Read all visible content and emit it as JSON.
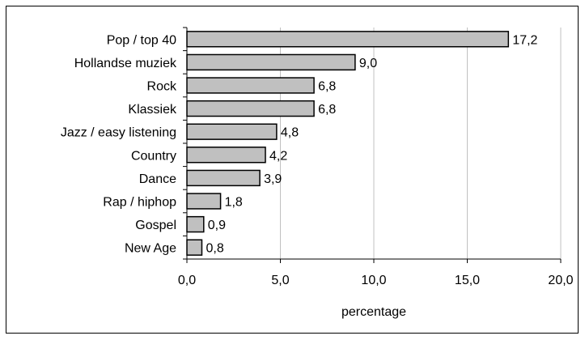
{
  "chart_data": {
    "type": "bar",
    "orientation": "horizontal",
    "categories": [
      "Pop / top 40",
      "Hollandse muziek",
      "Rock",
      "Klassiek",
      "Jazz / easy listening",
      "Country",
      "Dance",
      "Rap / hiphop",
      "Gospel",
      "New Age"
    ],
    "values": [
      17.2,
      9.0,
      6.8,
      6.8,
      4.8,
      4.2,
      3.9,
      1.8,
      0.9,
      0.8
    ],
    "value_labels": [
      "17,2",
      "9,0",
      "6,8",
      "6,8",
      "4,8",
      "4,2",
      "3,9",
      "1,8",
      "0,9",
      "0,8"
    ],
    "xlim": [
      0,
      20
    ],
    "x_ticks": [
      0,
      5,
      10,
      15,
      20
    ],
    "x_tick_labels": [
      "0,0",
      "5,0",
      "10,0",
      "15,0",
      "20,0"
    ],
    "xlabel": "percentage",
    "ylabel": "",
    "title": "",
    "grid": "vertical",
    "colors": {
      "bar_fill": "#c0c0c0",
      "bar_stroke": "#000000",
      "grid": "#c0c0c0"
    }
  }
}
